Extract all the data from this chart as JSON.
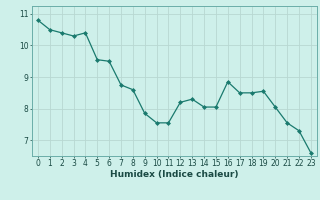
{
  "x": [
    0,
    1,
    2,
    3,
    4,
    5,
    6,
    7,
    8,
    9,
    10,
    11,
    12,
    13,
    14,
    15,
    16,
    17,
    18,
    19,
    20,
    21,
    22,
    23
  ],
  "y": [
    10.8,
    10.5,
    10.4,
    10.3,
    10.4,
    9.55,
    9.5,
    8.75,
    8.6,
    7.85,
    7.55,
    7.55,
    8.2,
    8.3,
    8.05,
    8.05,
    8.85,
    8.5,
    8.5,
    8.55,
    8.05,
    7.55,
    7.3,
    6.6
  ],
  "xlabel": "Humidex (Indice chaleur)",
  "xlim": [
    -0.5,
    23.5
  ],
  "ylim": [
    6.5,
    11.25
  ],
  "yticks": [
    7,
    8,
    9,
    10,
    11
  ],
  "xticks": [
    0,
    1,
    2,
    3,
    4,
    5,
    6,
    7,
    8,
    9,
    10,
    11,
    12,
    13,
    14,
    15,
    16,
    17,
    18,
    19,
    20,
    21,
    22,
    23
  ],
  "line_color": "#1a7a6e",
  "marker": "D",
  "marker_size": 2.0,
  "bg_color": "#cef0ea",
  "grid_color": "#b8d8d2",
  "axis_color": "#6aada8",
  "tick_color": "#1a4a44",
  "label_fontsize": 6.5,
  "tick_fontsize": 5.5
}
